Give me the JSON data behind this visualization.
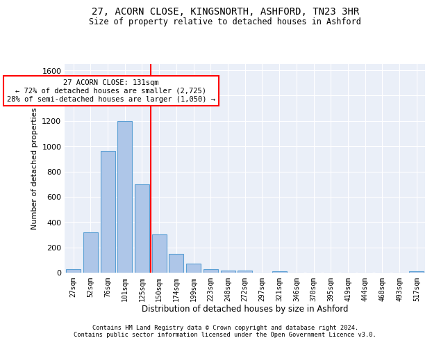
{
  "title1": "27, ACORN CLOSE, KINGSNORTH, ASHFORD, TN23 3HR",
  "title2": "Size of property relative to detached houses in Ashford",
  "xlabel": "Distribution of detached houses by size in Ashford",
  "ylabel": "Number of detached properties",
  "bin_labels": [
    "27sqm",
    "52sqm",
    "76sqm",
    "101sqm",
    "125sqm",
    "150sqm",
    "174sqm",
    "199sqm",
    "223sqm",
    "248sqm",
    "272sqm",
    "297sqm",
    "321sqm",
    "346sqm",
    "370sqm",
    "395sqm",
    "419sqm",
    "444sqm",
    "468sqm",
    "493sqm",
    "517sqm"
  ],
  "bar_heights": [
    30,
    320,
    960,
    1200,
    700,
    300,
    150,
    70,
    25,
    15,
    15,
    0,
    10,
    0,
    0,
    0,
    0,
    0,
    0,
    0,
    10
  ],
  "bar_color": "#aec6e8",
  "bar_edgecolor": "#5a9fd4",
  "bar_linewidth": 0.8,
  "vline_x_index": 4,
  "vline_color": "red",
  "annotation_text": "27 ACORN CLOSE: 131sqm\n← 72% of detached houses are smaller (2,725)\n28% of semi-detached houses are larger (1,050) →",
  "annotation_box_color": "white",
  "annotation_box_edgecolor": "red",
  "ylim": [
    0,
    1650
  ],
  "yticks": [
    0,
    200,
    400,
    600,
    800,
    1000,
    1200,
    1400,
    1600
  ],
  "bg_color": "#eaeff8",
  "footer1": "Contains HM Land Registry data © Crown copyright and database right 2024.",
  "footer2": "Contains public sector information licensed under the Open Government Licence v3.0."
}
